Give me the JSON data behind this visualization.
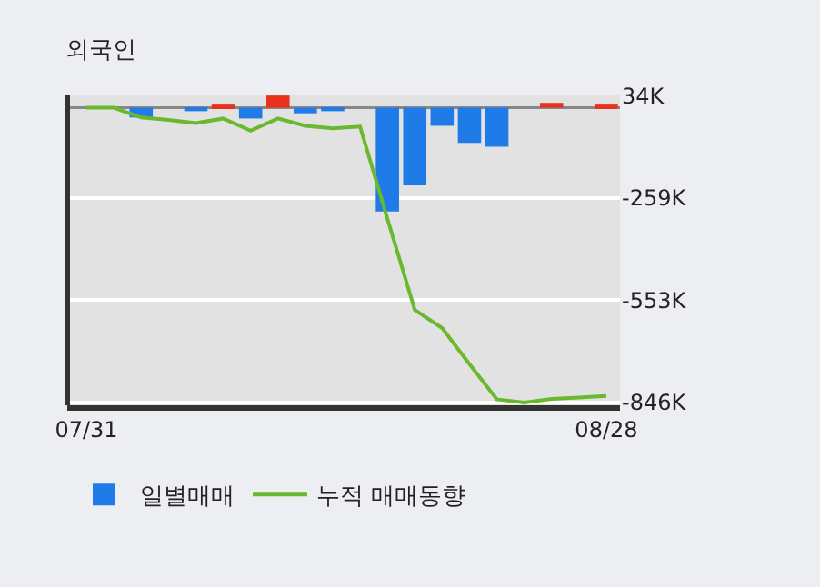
{
  "chart_data": {
    "type": "bar",
    "title": "외국인",
    "categories": [
      "07/31",
      null,
      null,
      null,
      null,
      null,
      null,
      null,
      null,
      null,
      null,
      null,
      null,
      null,
      null,
      null,
      null,
      null,
      null,
      "08/28"
    ],
    "series": [
      {
        "name": "일별매매",
        "colors": [
          "#1e7be8",
          "#1e7be8",
          "#1e7be8",
          "#1e7be8",
          "#1e7be8",
          "#e8321e",
          "#1e7be8",
          "#e8321e",
          "#1e7be8",
          "#1e7be8",
          "#1e7be8",
          "#1e7be8",
          "#1e7be8",
          "#1e7be8",
          "#1e7be8",
          "#1e7be8",
          "#1e7be8",
          "#e8321e",
          "#1e7be8",
          "#e8321e"
        ],
        "values": [
          null,
          null,
          -28,
          null,
          -10,
          9,
          -31,
          35,
          -16,
          -10,
          null,
          -298,
          -223,
          -52,
          -101,
          -112,
          null,
          14,
          null,
          9
        ]
      },
      {
        "name": "누적 매매동향",
        "type": "line",
        "color": "#6ab82e",
        "values": [
          0,
          0,
          -28,
          -35,
          -44,
          -31,
          -66,
          -31,
          -52,
          -59,
          -54,
          -319,
          -581,
          -633,
          -737,
          -838,
          -847,
          -837,
          -833,
          -828
        ]
      }
    ],
    "ylim": [
      -855,
      38
    ],
    "yticks": [
      {
        "value": 34,
        "label": "34K"
      },
      {
        "value": -259,
        "label": "-259K"
      },
      {
        "value": -553,
        "label": "-553K"
      },
      {
        "value": -846,
        "label": "-846K"
      }
    ],
    "ref_lines": [
      {
        "axis": "y",
        "value": 0,
        "color": "#888888"
      }
    ],
    "grid": "y",
    "legend": "bottom",
    "marker": "none",
    "line_style": "solid"
  }
}
